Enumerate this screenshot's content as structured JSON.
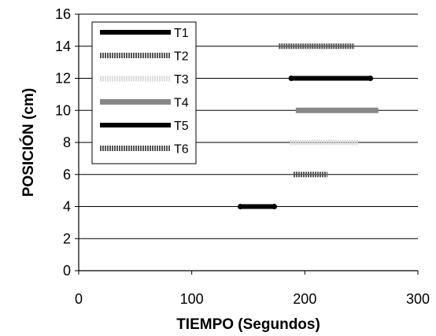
{
  "chart_data": {
    "type": "line",
    "title": "",
    "xlabel": "TIEMPO (Segundos)",
    "ylabel": "POSICIÓN (cm)",
    "xlim": [
      0,
      300
    ],
    "ylim": [
      0,
      16
    ],
    "xticks": [
      "0",
      "100",
      "200",
      "300"
    ],
    "yticks": [
      "0",
      "2",
      "4",
      "6",
      "8",
      "10",
      "12",
      "14",
      "16"
    ],
    "grid": "horizontal",
    "legend_position": "top-left",
    "series": [
      {
        "name": "T1",
        "color": "#000000",
        "style": "solid-thick",
        "x": [
          143,
          173
        ],
        "y": [
          4,
          4
        ]
      },
      {
        "name": "T2",
        "color": "#555555",
        "style": "hatched",
        "x": [
          190,
          220
        ],
        "y": [
          6,
          6
        ]
      },
      {
        "name": "T3",
        "color": "#dddddd",
        "style": "dotted-light",
        "x": [
          187,
          247
        ],
        "y": [
          8,
          8
        ]
      },
      {
        "name": "T4",
        "color": "#888888",
        "style": "solid",
        "x": [
          192,
          265
        ],
        "y": [
          10,
          10
        ]
      },
      {
        "name": "T5",
        "color": "#000000",
        "style": "solid-thick",
        "x": [
          188,
          258
        ],
        "y": [
          12,
          12
        ]
      },
      {
        "name": "T6",
        "color": "#555555",
        "style": "hatched",
        "x": [
          177,
          244
        ],
        "y": [
          14,
          14
        ]
      }
    ]
  }
}
